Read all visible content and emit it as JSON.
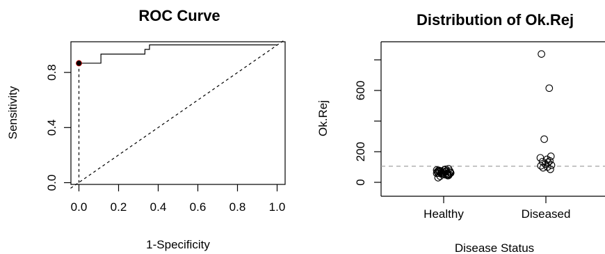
{
  "chart_data": [
    {
      "type": "line",
      "title": "ROC Curve",
      "xlabel": "1-Specificity",
      "ylabel": "Sensitivity",
      "xlim": [
        0,
        1
      ],
      "ylim": [
        0,
        1
      ],
      "x_ticks": [
        "0.0",
        "0.2",
        "0.4",
        "0.6",
        "0.8",
        "1.0"
      ],
      "y_ticks": [
        "0.0",
        "0.4",
        "0.8"
      ],
      "roc_points": [
        {
          "x": 0.0,
          "y": 0.0
        },
        {
          "x": 0.0,
          "y": 0.867
        },
        {
          "x": 0.111,
          "y": 0.867
        },
        {
          "x": 0.111,
          "y": 0.933
        },
        {
          "x": 0.333,
          "y": 0.933
        },
        {
          "x": 0.333,
          "y": 0.967
        },
        {
          "x": 0.356,
          "y": 0.967
        },
        {
          "x": 0.356,
          "y": 1.0
        },
        {
          "x": 1.0,
          "y": 1.0
        }
      ],
      "chance_line": [
        [
          0,
          0
        ],
        [
          1,
          1
        ]
      ],
      "optimal_point": {
        "x": 0.0,
        "y": 0.867
      },
      "colors": {
        "curve": "#000000",
        "chance": "#000000",
        "marker": "#000000",
        "marker_accent": "#cc0000"
      }
    },
    {
      "type": "scatter",
      "title": "Distribution of Ok.Rej",
      "xlabel": "Disease Status",
      "ylabel": "Ok.Rej",
      "categories": [
        "Healthy",
        "Diseased"
      ],
      "y_ticks": [
        0,
        200,
        400,
        600,
        800
      ],
      "y_tick_labels": [
        "0",
        "200",
        "",
        "600",
        ""
      ],
      "ylim": [
        0,
        850
      ],
      "cutoff": 105,
      "series": [
        {
          "category": "Healthy",
          "values": [
            60,
            55,
            65,
            72,
            80,
            50,
            45,
            68,
            75,
            58,
            62,
            70,
            85,
            40,
            52,
            66,
            78,
            48,
            57,
            63,
            73,
            81,
            44,
            59,
            69,
            30,
            88,
            54,
            61,
            76
          ]
        },
        {
          "category": "Diseased",
          "values": [
            838,
            615,
            282,
            170,
            160,
            150,
            140,
            135,
            130,
            120,
            112,
            108,
            100,
            95,
            85
          ]
        }
      ],
      "colors": {
        "points": "#000000",
        "cutoff": "#a0a0a0"
      }
    }
  ]
}
